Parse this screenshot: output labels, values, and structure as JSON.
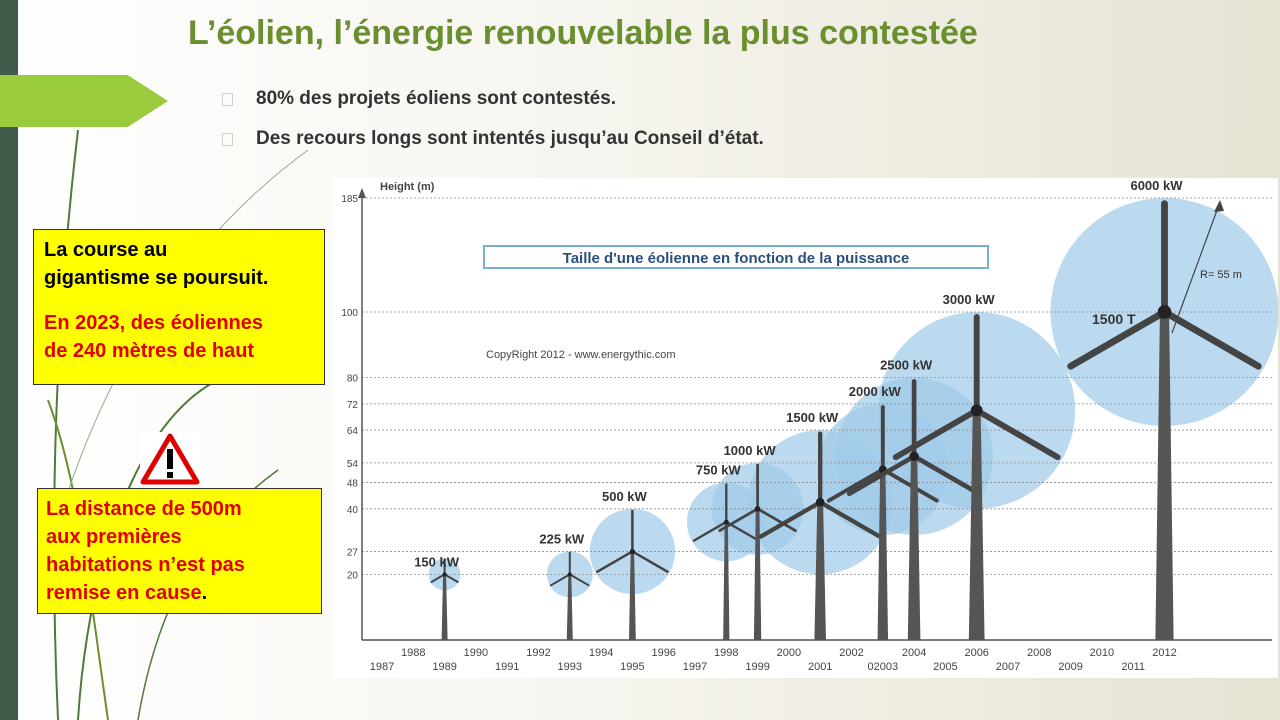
{
  "slide": {
    "title": "L’éolien, l’énergie renouvelable la plus contestée",
    "bullets": [
      "80% des projets éoliens sont contestés.",
      "Des recours longs sont intentés jusqu’au Conseil d’état."
    ]
  },
  "callout1": {
    "line1": "La course au",
    "line2": "gigantisme se poursuit.",
    "line3": "En 2023,  des éoliennes",
    "line4": "de 240 mètres de haut"
  },
  "callout2": {
    "line1": "La distance de 500m",
    "line2": "aux premières",
    "line3": "habitations n’est pas",
    "line4": "remise en cause",
    "period": "."
  },
  "warning_icon": "warning-triangle-icon",
  "chart_data": {
    "type": "bar",
    "title": "Taille d'une éolienne en fonction de la puissance",
    "copyright": "CopyRight 2012 - www.energythic.com",
    "ylabel": "Height (m)",
    "ylim": [
      0,
      185
    ],
    "y_ticks": [
      20,
      27,
      40,
      48,
      54,
      64,
      72,
      80,
      100,
      185
    ],
    "x_ticks_top": [
      "1988",
      "1990",
      "1992",
      "1994",
      "1996",
      "1998",
      "2000",
      "2002",
      "2004",
      "2006",
      "2008",
      "2010",
      "2012"
    ],
    "x_ticks_bottom": [
      "1987",
      "1989",
      "1991",
      "1993",
      "1995",
      "1997",
      "1999",
      "2001",
      "02003",
      "2005",
      "2007",
      "2009",
      "2011"
    ],
    "turbines": [
      {
        "year": 1989,
        "height": 20,
        "power": "150 kW",
        "hub": 20
      },
      {
        "year": 1993,
        "height": 27,
        "power": "225 kW",
        "hub": 20
      },
      {
        "year": 1995,
        "height": 40,
        "power": "500 kW",
        "hub": 27
      },
      {
        "year": 1998,
        "height": 48,
        "power": "750 kW",
        "hub": 36
      },
      {
        "year": 1999,
        "height": 54,
        "power": "1000 kW",
        "hub": 40
      },
      {
        "year": 2001,
        "height": 64,
        "power": "1500 kW",
        "hub": 42
      },
      {
        "year": 2003,
        "height": 72,
        "power": "2000 kW",
        "hub": 52
      },
      {
        "year": 2004,
        "height": 80,
        "power": "2500 kW",
        "hub": 56
      },
      {
        "year": 2006,
        "height": 100,
        "power": "3000 kW",
        "hub": 70
      },
      {
        "year": 2012,
        "height": 185,
        "power": "6000 kW",
        "hub": 100
      }
    ],
    "annotations": {
      "radius": "R= 55 m",
      "model": "1500 T"
    },
    "colors": {
      "bubble": "#9fcbe8",
      "tower": "#555555",
      "title_border": "#7aaed0"
    }
  }
}
